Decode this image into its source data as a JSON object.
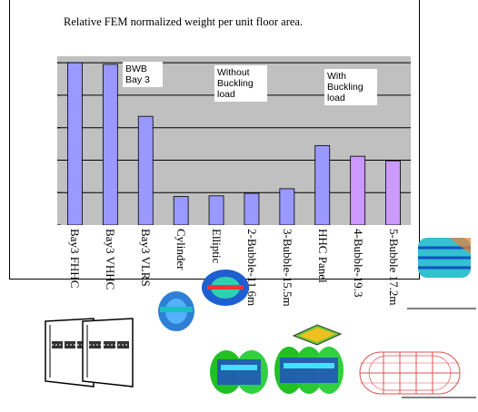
{
  "chart_data": {
    "type": "bar",
    "title": "Relative FEM  normalized weight per unit floor area.",
    "categories": [
      "Bay3 FHHC",
      "Bay3 VHHC",
      "Bay3 VLRS",
      "Cylinder",
      "Elliptic",
      "2-Bubble-11.6m",
      "3-Bubble-15.5m",
      "HHC Panel",
      "4-Bubble-19.3",
      "5-Bubble 17.2m"
    ],
    "values": [
      5.0,
      4.95,
      3.35,
      0.88,
      0.9,
      0.98,
      1.12,
      2.45,
      2.12,
      1.98
    ],
    "bar_colors": [
      "#9999ff",
      "#9999ff",
      "#9999ff",
      "#9999ff",
      "#9999ff",
      "#9999ff",
      "#9999ff",
      "#9999ff",
      "#cc99ff",
      "#cc99ff"
    ],
    "ylim": [
      0,
      5.2
    ],
    "grid": true,
    "xlabel": "",
    "ylabel": "",
    "annotations": [
      {
        "lines": [
          "BWB",
          "Bay 3"
        ]
      },
      {
        "lines": [
          "Without",
          "Buckling",
          "load"
        ]
      },
      {
        "lines": [
          "With",
          "Buckling",
          "load"
        ]
      }
    ]
  },
  "colors": {
    "plot_bg": "#c0c0c0",
    "bar_blue": "#9999ff",
    "bar_violet": "#cc99ff",
    "grid": "#000000"
  }
}
